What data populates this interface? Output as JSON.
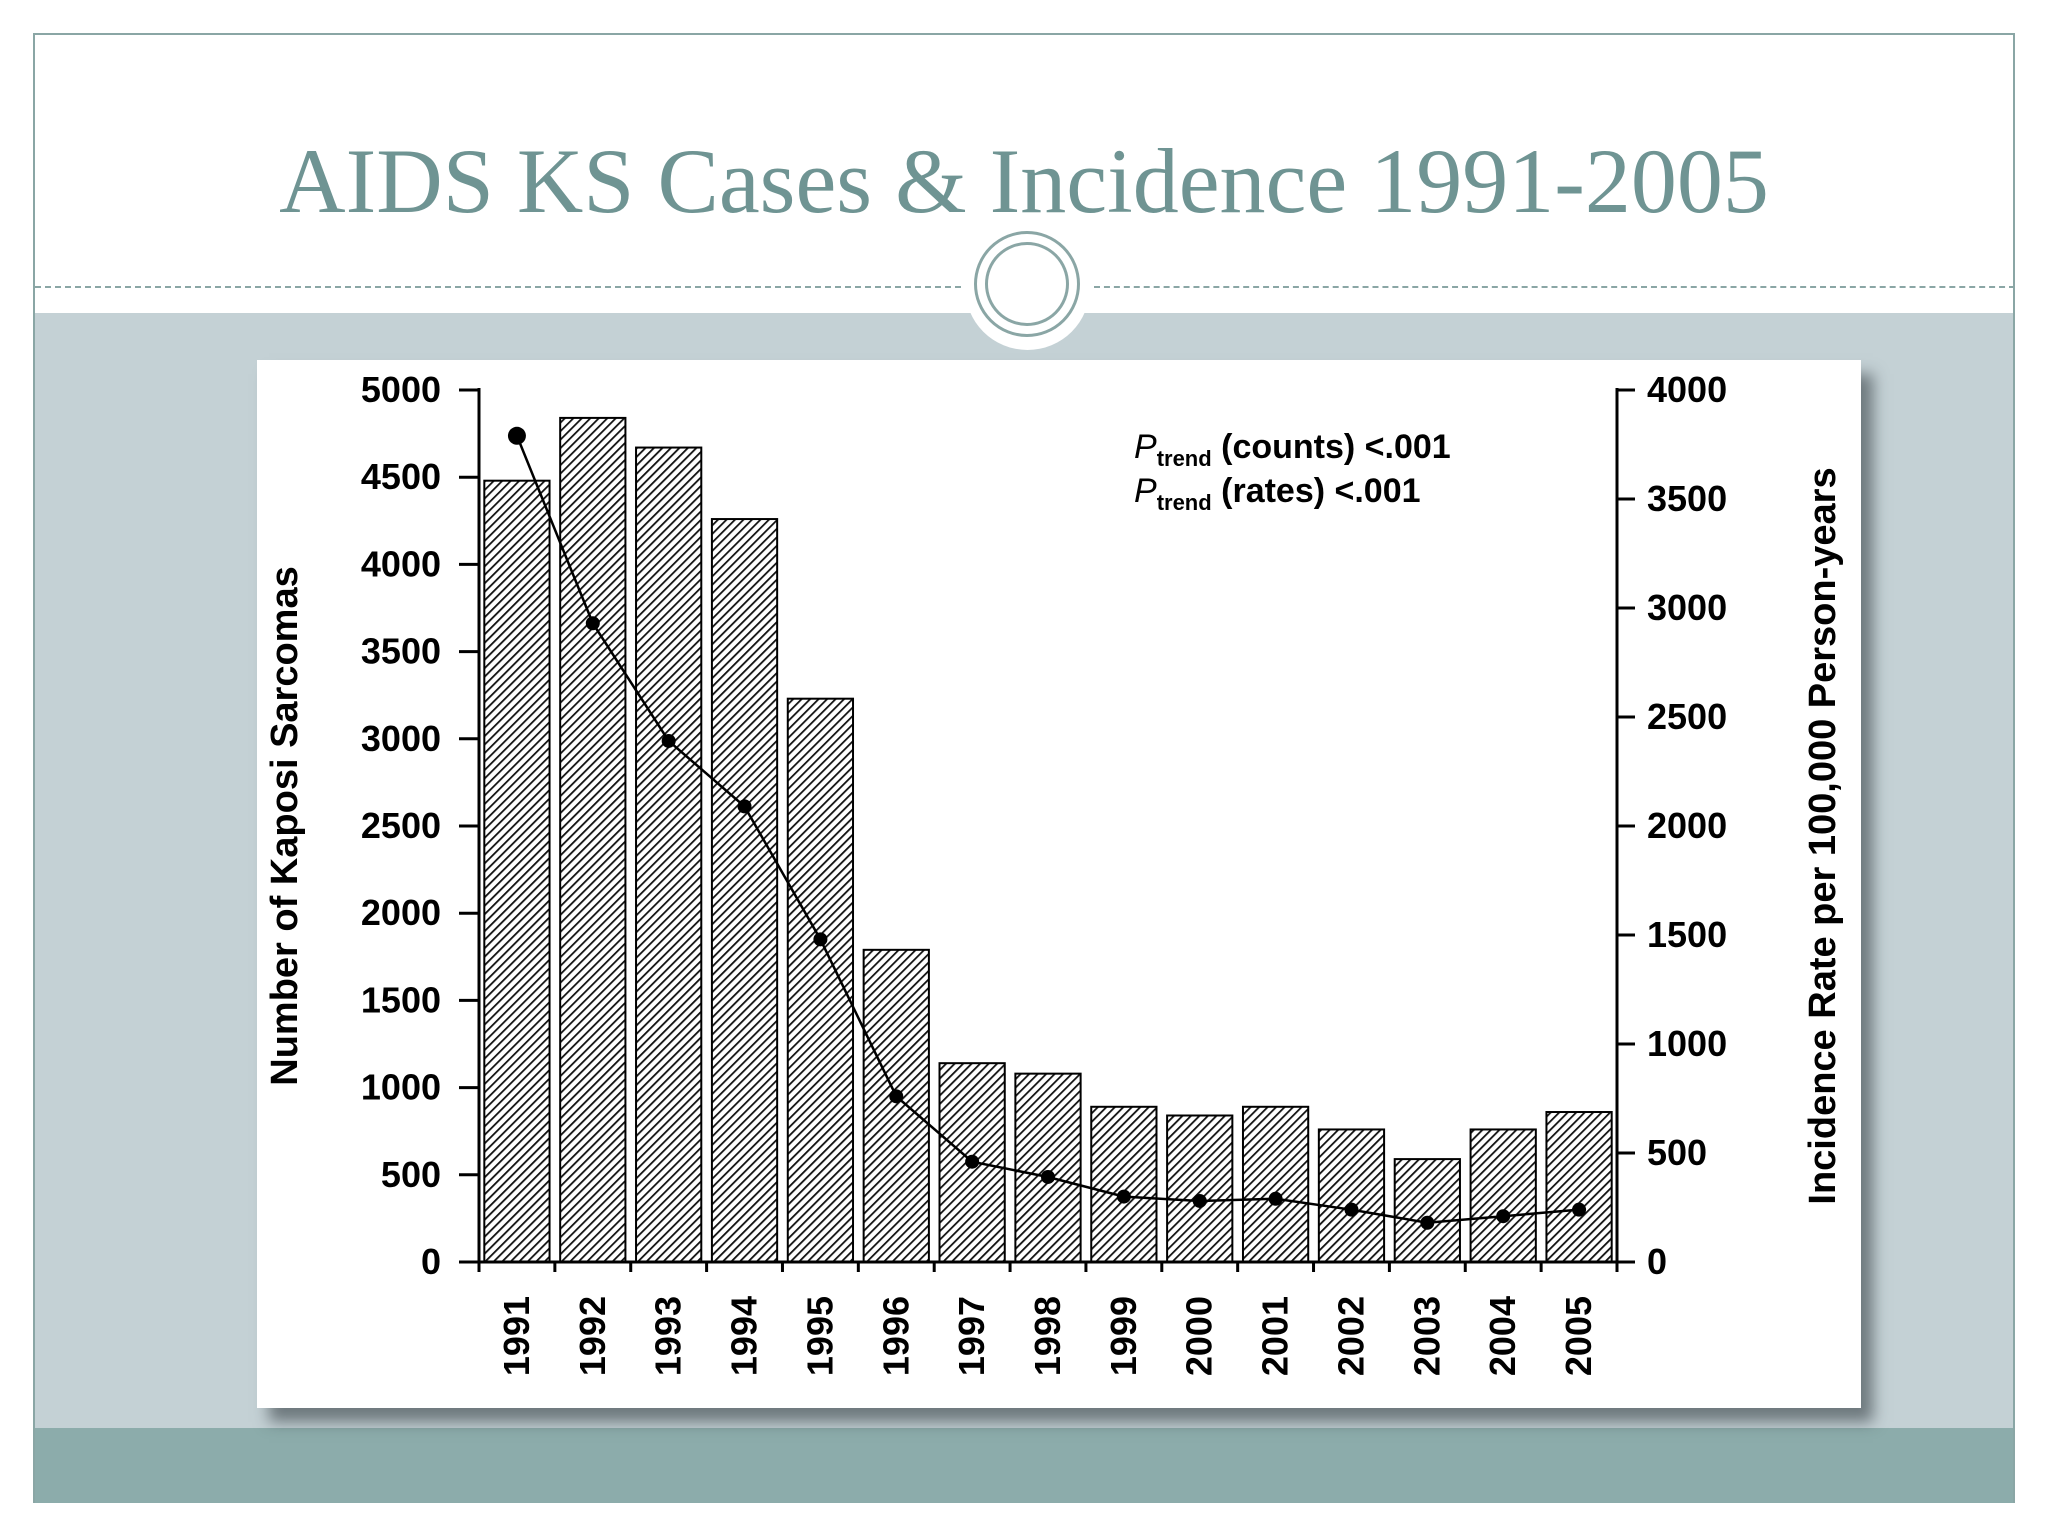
{
  "slide": {
    "title": "AIDS KS Cases & Incidence 1991-2005",
    "colors": {
      "title": "#6f9493",
      "body_band": "#c4d1d5",
      "footer_band": "#8cacab",
      "frame": "#8aa6a5"
    }
  },
  "chart_data": {
    "type": "bar",
    "categories": [
      "1991",
      "1992",
      "1993",
      "1994",
      "1995",
      "1996",
      "1997",
      "1998",
      "1999",
      "2000",
      "2001",
      "2002",
      "2003",
      "2004",
      "2005"
    ],
    "series": [
      {
        "values": [
          4480,
          4840,
          4670,
          4260,
          3230,
          1790,
          1140,
          1080,
          890,
          840,
          890,
          760,
          590,
          760,
          860
        ],
        "axis": "left",
        "style": "hatched-bar"
      },
      {
        "values": [
          3790,
          2930,
          2390,
          2090,
          1480,
          760,
          460,
          390,
          300,
          280,
          290,
          240,
          180,
          210,
          240
        ],
        "axis": "right",
        "style": "line-with-markers"
      }
    ],
    "ylabel": "Number of Kaposi Sarcomas",
    "y2label": "Incidence Rate per 100,000 Person-years",
    "xlabel": "",
    "ylim": [
      0,
      5000
    ],
    "y2lim": [
      0,
      4000
    ],
    "yticks": [
      "0",
      "500",
      "1000",
      "1500",
      "2000",
      "2500",
      "3000",
      "3500",
      "4000",
      "4500",
      "5000"
    ],
    "y2ticks": [
      "0",
      "500",
      "1000",
      "1500",
      "2000",
      "2500",
      "3000",
      "3500",
      "4000"
    ],
    "annotations": [
      {
        "p": "P",
        "sub": "trend",
        "text": " (counts) <.001"
      },
      {
        "p": "P",
        "sub": "trend",
        "text": " (rates) <.001"
      }
    ],
    "grid": false,
    "legend": "none"
  }
}
